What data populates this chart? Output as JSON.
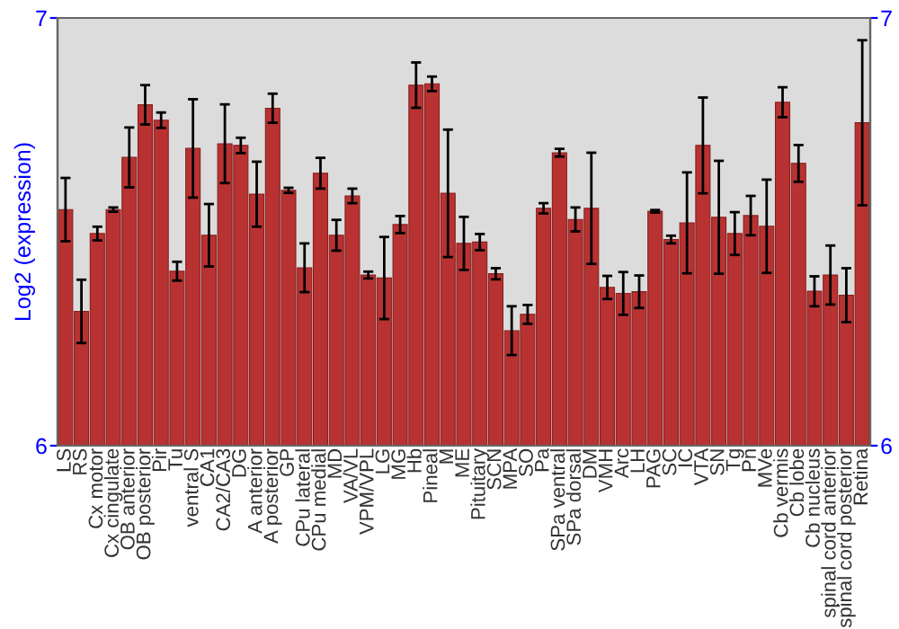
{
  "chart_data": {
    "type": "bar",
    "ylabel": "Log2 (expression)",
    "categories": [
      "LS",
      "RS",
      "Cx motor",
      "Cx cingulate",
      "OB anterior",
      "OB posterior",
      "Pir",
      "Tu",
      "ventral S",
      "CA1",
      "CA2/CA3",
      "DG",
      "A anterior",
      "A posterior",
      "GP",
      "CPu lateral",
      "CPu medial",
      "MD",
      "VA/VL",
      "VPM/VPL",
      "LG",
      "MG",
      "Hb",
      "Pineal",
      "M",
      "ME",
      "Pituitary",
      "SCN",
      "MPA",
      "SO",
      "Pa",
      "SPa ventral",
      "SPa dorsal",
      "DM",
      "VMH",
      "Arc",
      "LH",
      "PAG",
      "SC",
      "IC",
      "VTA",
      "SN",
      "Tg",
      "Pn",
      "MVe",
      "Cb vermis",
      "Cb lobe",
      "Cb nucleus",
      "spinal cord anterior",
      "spinal cord posterior",
      "Retina"
    ],
    "values": [
      6.552,
      6.314,
      6.496,
      6.552,
      6.674,
      6.797,
      6.761,
      6.408,
      6.695,
      6.492,
      6.706,
      6.702,
      6.588,
      6.789,
      6.597,
      6.416,
      6.637,
      6.492,
      6.584,
      6.399,
      6.392,
      6.517,
      6.843,
      6.846,
      6.59,
      6.473,
      6.476,
      6.402,
      6.269,
      6.307,
      6.555,
      6.685,
      6.529,
      6.555,
      6.37,
      6.356,
      6.36,
      6.548,
      6.482,
      6.521,
      6.702,
      6.534,
      6.496,
      6.538,
      6.513,
      6.803,
      6.66,
      6.361,
      6.399,
      6.352,
      6.755
    ],
    "errors": [
      0.074,
      0.074,
      0.016,
      0.005,
      0.07,
      0.046,
      0.018,
      0.022,
      0.115,
      0.073,
      0.092,
      0.018,
      0.076,
      0.034,
      0.006,
      0.057,
      0.036,
      0.036,
      0.017,
      0.008,
      0.096,
      0.02,
      0.053,
      0.017,
      0.149,
      0.062,
      0.019,
      0.013,
      0.057,
      0.022,
      0.012,
      0.009,
      0.028,
      0.13,
      0.027,
      0.05,
      0.038,
      0.003,
      0.009,
      0.118,
      0.112,
      0.132,
      0.05,
      0.046,
      0.109,
      0.035,
      0.043,
      0.035,
      0.069,
      0.063,
      0.193
    ],
    "color": "#b83232",
    "ylim": [
      6,
      7
    ],
    "yticks": [
      6,
      7
    ],
    "y2lim": [
      6,
      7
    ],
    "y2ticks": [
      6,
      7
    ],
    "grid": false
  }
}
